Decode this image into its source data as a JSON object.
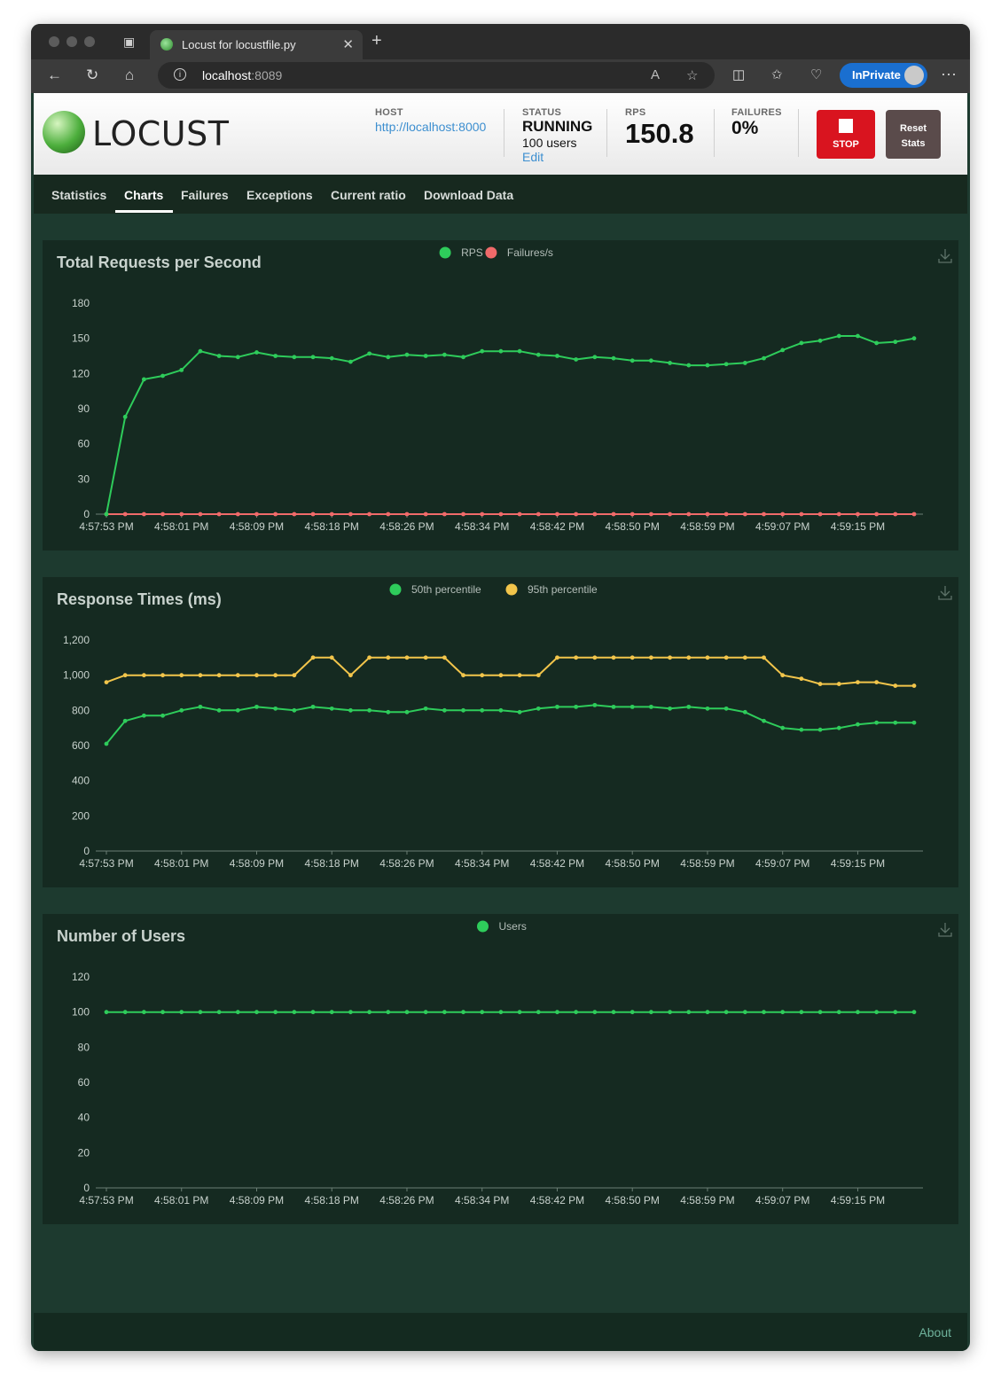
{
  "browser": {
    "tab_title": "Locust for locustfile.py",
    "url_host": "localhost",
    "url_port": ":8089",
    "inprivate_label": "InPrivate"
  },
  "header": {
    "logo_text": "LOCUST",
    "host_label": "HOST",
    "host_value": "http://localhost:8000",
    "status_label": "STATUS",
    "status_value": "RUNNING",
    "users_value": "100 users",
    "edit_label": "Edit",
    "rps_label": "RPS",
    "rps_value": "150.8",
    "failures_label": "FAILURES",
    "failures_value": "0%",
    "stop_label": "STOP",
    "reset_label_1": "Reset",
    "reset_label_2": "Stats",
    "stop_color": "#d9141f"
  },
  "nav": {
    "items": [
      "Statistics",
      "Charts",
      "Failures",
      "Exceptions",
      "Current ratio",
      "Download Data"
    ],
    "active": "Charts"
  },
  "footer": {
    "about_label": "About"
  },
  "colors": {
    "green": "#2ecc5b",
    "red": "#f06a6a",
    "yellow": "#f2c54b",
    "panel_bg": "#152a21",
    "page_bg": "#1d3a2f"
  },
  "chart_data": [
    {
      "type": "line",
      "title": "Total Requests per Second",
      "x_ticks": [
        "4:57:53 PM",
        "4:58:01 PM",
        "4:58:09 PM",
        "4:58:18 PM",
        "4:58:26 PM",
        "4:58:34 PM",
        "4:58:42 PM",
        "4:58:50 PM",
        "4:58:59 PM",
        "4:59:07 PM",
        "4:59:15 PM"
      ],
      "ylim": [
        0,
        180
      ],
      "y_ticks": [
        "0",
        "30",
        "60",
        "90",
        "120",
        "150",
        "180"
      ],
      "legend": "top-center",
      "series": [
        {
          "name": "RPS",
          "color": "#2ecc5b",
          "values": [
            0,
            83,
            115,
            118,
            123,
            139,
            135,
            134,
            138,
            135,
            134,
            134,
            133,
            130,
            137,
            134,
            136,
            135,
            136,
            134,
            139,
            139,
            139,
            136,
            135,
            132,
            134,
            133,
            131,
            131,
            129,
            127,
            127,
            128,
            129,
            133,
            140,
            146,
            148,
            152,
            152,
            146,
            147,
            150
          ]
        },
        {
          "name": "Failures/s",
          "color": "#f06a6a",
          "values": [
            0,
            0,
            0,
            0,
            0,
            0,
            0,
            0,
            0,
            0,
            0,
            0,
            0,
            0,
            0,
            0,
            0,
            0,
            0,
            0,
            0,
            0,
            0,
            0,
            0,
            0,
            0,
            0,
            0,
            0,
            0,
            0,
            0,
            0,
            0,
            0,
            0,
            0,
            0,
            0,
            0,
            0,
            0,
            0
          ]
        }
      ]
    },
    {
      "type": "line",
      "title": "Response Times (ms)",
      "x_ticks": [
        "4:57:53 PM",
        "4:58:01 PM",
        "4:58:09 PM",
        "4:58:18 PM",
        "4:58:26 PM",
        "4:58:34 PM",
        "4:58:42 PM",
        "4:58:50 PM",
        "4:58:59 PM",
        "4:59:07 PM",
        "4:59:15 PM"
      ],
      "ylim": [
        0,
        1200
      ],
      "y_ticks": [
        "0",
        "200",
        "400",
        "600",
        "800",
        "1,000",
        "1,200"
      ],
      "legend": "top-center",
      "series": [
        {
          "name": "50th percentile",
          "color": "#2ecc5b",
          "values": [
            610,
            740,
            770,
            770,
            800,
            820,
            800,
            800,
            820,
            810,
            800,
            820,
            810,
            800,
            800,
            790,
            790,
            810,
            800,
            800,
            800,
            800,
            790,
            810,
            820,
            820,
            830,
            820,
            820,
            820,
            810,
            820,
            810,
            810,
            790,
            740,
            700,
            690,
            690,
            700,
            720,
            730,
            730,
            730
          ]
        },
        {
          "name": "95th percentile",
          "color": "#f2c54b",
          "values": [
            960,
            1000,
            1000,
            1000,
            1000,
            1000,
            1000,
            1000,
            1000,
            1000,
            1000,
            1100,
            1100,
            1000,
            1100,
            1100,
            1100,
            1100,
            1100,
            1000,
            1000,
            1000,
            1000,
            1000,
            1100,
            1100,
            1100,
            1100,
            1100,
            1100,
            1100,
            1100,
            1100,
            1100,
            1100,
            1100,
            1000,
            980,
            950,
            950,
            960,
            960,
            940,
            940
          ]
        }
      ]
    },
    {
      "type": "line",
      "title": "Number of Users",
      "x_ticks": [
        "4:57:53 PM",
        "4:58:01 PM",
        "4:58:09 PM",
        "4:58:18 PM",
        "4:58:26 PM",
        "4:58:34 PM",
        "4:58:42 PM",
        "4:58:50 PM",
        "4:58:59 PM",
        "4:59:07 PM",
        "4:59:15 PM"
      ],
      "ylim": [
        0,
        120
      ],
      "y_ticks": [
        "0",
        "20",
        "40",
        "60",
        "80",
        "100",
        "120"
      ],
      "legend": "top-center",
      "series": [
        {
          "name": "Users",
          "color": "#2ecc5b",
          "values": [
            100,
            100,
            100,
            100,
            100,
            100,
            100,
            100,
            100,
            100,
            100,
            100,
            100,
            100,
            100,
            100,
            100,
            100,
            100,
            100,
            100,
            100,
            100,
            100,
            100,
            100,
            100,
            100,
            100,
            100,
            100,
            100,
            100,
            100,
            100,
            100,
            100,
            100,
            100,
            100,
            100,
            100,
            100,
            100
          ]
        }
      ]
    }
  ]
}
